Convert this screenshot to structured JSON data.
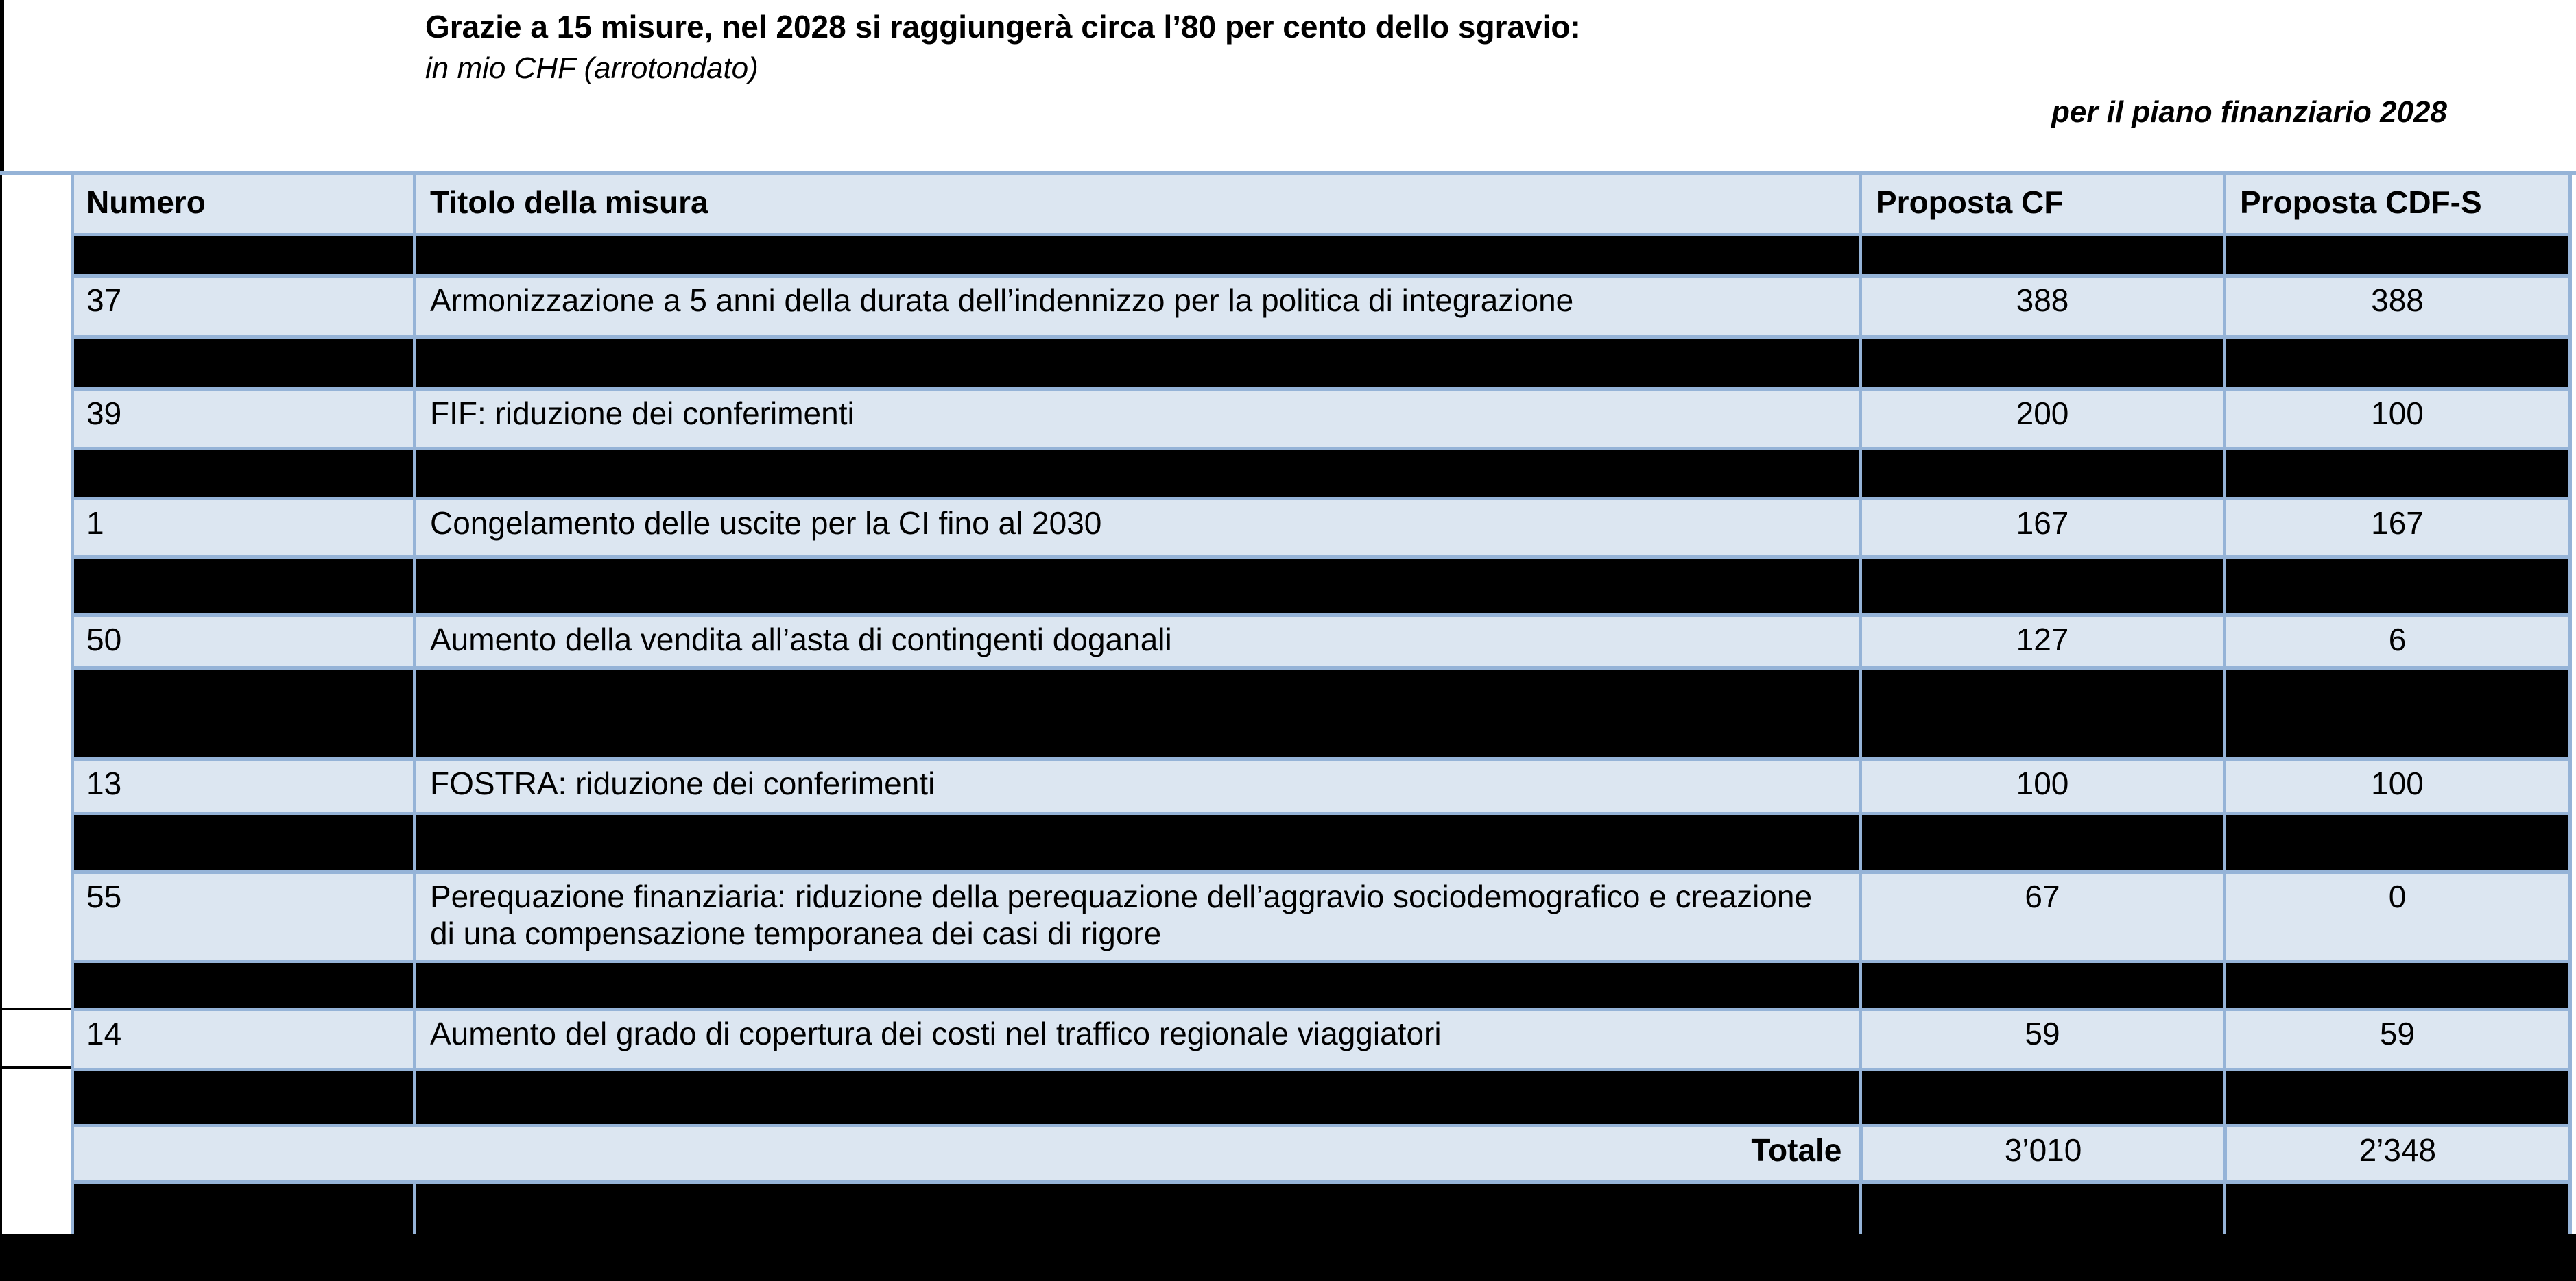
{
  "header": {
    "title": "Grazie a 15 misure, nel 2028 si raggiungerà circa l’80 per cento dello sgravio:",
    "subtitle": "in mio CHF (arrotondato)",
    "note": "per il piano finanziario 2028"
  },
  "table": {
    "columns": [
      "Numero",
      "Titolo della misura",
      "Proposta CF",
      "Proposta CDF-S"
    ],
    "rows": [
      {
        "kind": "redacted"
      },
      {
        "kind": "measure",
        "numero": "37",
        "titolo": "Armonizzazione a 5 anni della durata dell’indennizzo per la politica di integrazione",
        "cf": "388",
        "cdfs": "388"
      },
      {
        "kind": "redacted"
      },
      {
        "kind": "measure",
        "numero": "39",
        "titolo": "FIF: riduzione dei conferimenti",
        "cf": "200",
        "cdfs": "100"
      },
      {
        "kind": "redacted"
      },
      {
        "kind": "measure",
        "numero": "1",
        "titolo": "Congelamento delle uscite per la CI fino al 2030",
        "cf": "167",
        "cdfs": "167"
      },
      {
        "kind": "redacted"
      },
      {
        "kind": "measure",
        "numero": "50",
        "titolo": "Aumento della vendita all’asta di contingenti doganali",
        "cf": "127",
        "cdfs": "6"
      },
      {
        "kind": "redacted"
      },
      {
        "kind": "measure",
        "numero": "13",
        "titolo": "FOSTRA: riduzione dei conferimenti",
        "cf": "100",
        "cdfs": "100"
      },
      {
        "kind": "redacted"
      },
      {
        "kind": "measure",
        "numero": "55",
        "titolo": "Perequazione finanziaria: riduzione della perequazione dell’aggravio sociodemografico e creazione di una compensazione temporanea dei casi di rigore",
        "cf": "67",
        "cdfs": "0"
      },
      {
        "kind": "redacted"
      },
      {
        "kind": "measure",
        "numero": "14",
        "titolo": "Aumento del grado di copertura dei costi nel traffico regionale viaggiatori",
        "cf": "59",
        "cdfs": "59"
      },
      {
        "kind": "redacted"
      },
      {
        "kind": "total",
        "label": "Totale",
        "cf": "3’010",
        "cdfs": "2’348"
      },
      {
        "kind": "redacted"
      }
    ]
  },
  "colors": {
    "row_bg": "#dce6f1",
    "border": "#95b3d7",
    "redaction": "#000000"
  }
}
